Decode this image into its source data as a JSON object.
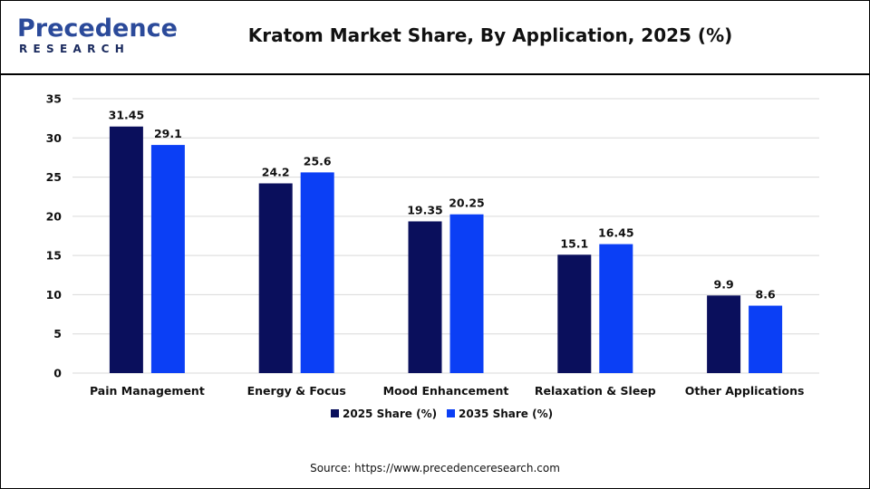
{
  "header": {
    "logo_top": "Precedence",
    "logo_bottom": "RESEARCH"
  },
  "chart_data": {
    "type": "bar",
    "title": "Kratom Market Share, By Application, 2025 (%)",
    "categories": [
      "Pain Management",
      "Energy & Focus",
      "Mood Enhancement",
      "Relaxation & Sleep",
      "Other Applications"
    ],
    "series": [
      {
        "name": "2025 Share (%)",
        "values": [
          31.45,
          24.2,
          19.35,
          15.1,
          9.9
        ],
        "color": "#0a0f5c"
      },
      {
        "name": "2035 Share (%)",
        "values": [
          29.1,
          25.6,
          20.25,
          16.45,
          8.6
        ],
        "color": "#0b3ff5"
      }
    ],
    "y_ticks": [
      "0",
      "5",
      "10",
      "15",
      "20",
      "25",
      "30",
      "35"
    ],
    "ylim": [
      0,
      35
    ],
    "xlabel": "",
    "ylabel": "",
    "grid": true,
    "legend_position": "bottom-center",
    "data_labels": [
      [
        "31.45",
        "24.2",
        "19.35",
        "15.1",
        "9.9"
      ],
      [
        "29.1",
        "25.6",
        "20.25",
        "16.45",
        "8.6"
      ]
    ]
  },
  "footer": {
    "source": "Source: https://www.precedenceresearch.com"
  }
}
